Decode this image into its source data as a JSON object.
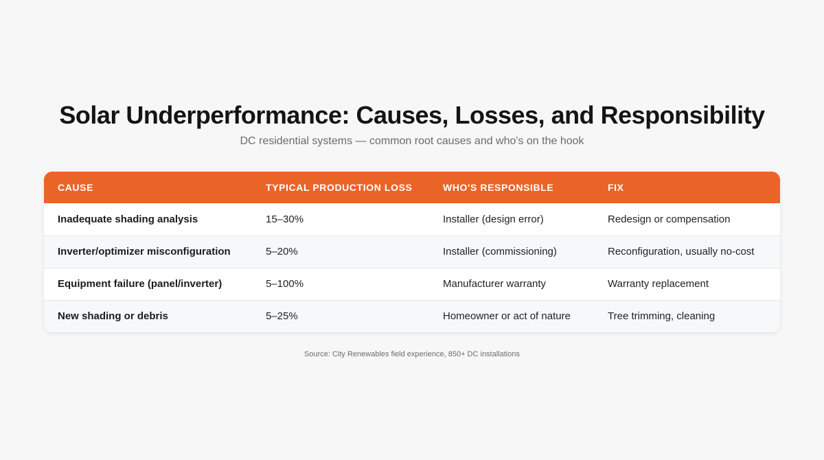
{
  "title": "Solar Underperformance: Causes, Losses, and Responsibility",
  "subtitle": "DC residential systems — common root causes and who's on the hook",
  "table": {
    "headers": [
      "CAUSE",
      "TYPICAL PRODUCTION LOSS",
      "WHO'S RESPONSIBLE",
      "FIX"
    ],
    "rows": [
      [
        "Inadequate shading analysis",
        "15–30%",
        "Installer (design error)",
        "Redesign or compensation"
      ],
      [
        "Inverter/optimizer misconfiguration",
        "5–20%",
        "Installer (commissioning)",
        "Reconfiguration, usually no-cost"
      ],
      [
        "Equipment failure (panel/inverter)",
        "5–100%",
        "Manufacturer warranty",
        "Warranty replacement"
      ],
      [
        "New shading or debris",
        "5–25%",
        "Homeowner or act of nature",
        "Tree trimming, cleaning"
      ]
    ]
  },
  "source": "Source: City Renewables field experience, 850+ DC installations",
  "colors": {
    "header_bg": "#ea6428",
    "page_bg": "#f7f7f8",
    "row_alt_bg": "#f6f8fa"
  }
}
